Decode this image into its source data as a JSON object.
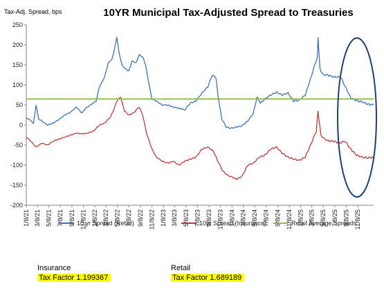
{
  "chart_data": {
    "type": "line",
    "title": "10YR Municipal Tax-Adjusted Spread to Treasuries",
    "ylabel": "Tax-Adj. Spread, bps",
    "xlabel": "",
    "ylim": [
      -200,
      250
    ],
    "yticks": [
      "250",
      "200",
      "150",
      "100",
      "50",
      "0",
      "-50",
      "-100",
      "-150",
      "-200"
    ],
    "xlim": [
      "2021-01-08",
      "2026-01-31"
    ],
    "xticks": [
      "1/8/21",
      "3/8/21",
      "5/8/21",
      "7/8/21",
      "9/8/21",
      "11/8/21",
      "1/8/22",
      "3/8/22",
      "5/8/22",
      "7/8/22",
      "9/8/22",
      "11/8/22",
      "1/8/23",
      "3/8/23",
      "5/8/23",
      "7/8/23",
      "9/8/23",
      "11/8/23",
      "1/8/24",
      "3/8/24",
      "5/8/24",
      "7/8/24",
      "9/8/24",
      "11/8/24",
      "1/8/25",
      "3/8/25",
      "5/8/25",
      "7/8/25",
      "9/8/25",
      "11/8/25"
    ],
    "grid": false,
    "legend_position": "bottom",
    "series": [
      {
        "name": "10 yr Spread (Retail)",
        "color": "#3f72b5",
        "x": [
          "2021-01-08",
          "2021-02-01",
          "2021-02-15",
          "2021-03-01",
          "2021-03-15",
          "2021-04-01",
          "2021-05-01",
          "2021-06-01",
          "2021-07-01",
          "2021-08-01",
          "2021-09-01",
          "2021-10-01",
          "2021-11-01",
          "2021-11-20",
          "2021-12-15",
          "2022-01-15",
          "2022-02-01",
          "2022-03-01",
          "2022-03-20",
          "2022-04-10",
          "2022-04-25",
          "2022-05-05",
          "2022-05-15",
          "2022-06-01",
          "2022-06-20",
          "2022-07-08",
          "2022-07-25",
          "2022-08-15",
          "2022-09-01",
          "2022-09-20",
          "2022-10-05",
          "2022-10-20",
          "2022-11-08",
          "2022-12-01",
          "2023-01-01",
          "2023-02-01",
          "2023-03-01",
          "2023-04-01",
          "2023-05-01",
          "2023-06-01",
          "2023-07-01",
          "2023-08-01",
          "2023-09-01",
          "2023-09-25",
          "2023-10-15",
          "2023-10-25",
          "2023-11-15",
          "2023-12-08",
          "2024-01-01",
          "2024-02-01",
          "2024-03-01",
          "2024-04-01",
          "2024-05-01",
          "2024-05-20",
          "2024-06-08",
          "2024-07-01",
          "2024-08-01",
          "2024-09-01",
          "2024-10-01",
          "2024-11-01",
          "2024-12-01",
          "2025-01-01",
          "2025-02-01",
          "2025-03-01",
          "2025-03-20",
          "2025-04-07",
          "2025-04-10",
          "2025-04-20",
          "2025-05-08",
          "2025-06-01",
          "2025-07-01",
          "2025-07-20",
          "2025-08-08",
          "2025-09-08",
          "2025-10-01",
          "2025-11-08",
          "2025-12-01",
          "2026-01-01",
          "2026-01-31"
        ],
        "y": [
          18,
          12,
          3,
          50,
          15,
          10,
          0,
          5,
          14,
          25,
          32,
          45,
          30,
          42,
          50,
          60,
          95,
          120,
          155,
          165,
          195,
          220,
          185,
          150,
          140,
          135,
          160,
          155,
          175,
          170,
          150,
          110,
          65,
          60,
          50,
          50,
          45,
          42,
          38,
          55,
          60,
          80,
          95,
          125,
          118,
          75,
          15,
          -5,
          -8,
          -5,
          -2,
          10,
          30,
          70,
          55,
          65,
          75,
          82,
          75,
          80,
          60,
          62,
          75,
          115,
          145,
          170,
          220,
          140,
          125,
          125,
          120,
          120,
          120,
          90,
          68,
          60,
          58,
          52,
          50
        ]
      },
      {
        "name": "10yr Spread (Insurance)",
        "color": "#c0393b",
        "x": [
          "2021-01-08",
          "2021-02-01",
          "2021-03-01",
          "2021-04-01",
          "2021-05-01",
          "2021-06-01",
          "2021-07-01",
          "2021-08-01",
          "2021-09-01",
          "2021-10-01",
          "2021-11-01",
          "2021-12-01",
          "2022-01-01",
          "2022-02-01",
          "2022-03-01",
          "2022-04-01",
          "2022-04-20",
          "2022-05-05",
          "2022-05-25",
          "2022-06-15",
          "2022-07-08",
          "2022-08-01",
          "2022-09-01",
          "2022-09-20",
          "2022-10-10",
          "2022-11-08",
          "2022-12-01",
          "2023-01-01",
          "2023-02-01",
          "2023-03-01",
          "2023-04-01",
          "2023-05-01",
          "2023-06-01",
          "2023-07-01",
          "2023-08-01",
          "2023-09-01",
          "2023-10-01",
          "2023-10-25",
          "2023-11-20",
          "2023-12-15",
          "2024-01-10",
          "2024-02-01",
          "2024-03-01",
          "2024-04-01",
          "2024-05-01",
          "2024-06-01",
          "2024-07-01",
          "2024-08-01",
          "2024-09-01",
          "2024-10-01",
          "2024-11-01",
          "2024-12-01",
          "2025-01-01",
          "2025-02-01",
          "2025-03-01",
          "2025-04-01",
          "2025-04-10",
          "2025-04-25",
          "2025-05-15",
          "2025-06-08",
          "2025-07-01",
          "2025-08-01",
          "2025-09-01",
          "2025-10-01",
          "2025-11-01",
          "2025-12-01",
          "2026-01-01",
          "2026-01-31"
        ],
        "y": [
          -30,
          -40,
          -55,
          -45,
          -50,
          -40,
          -35,
          -30,
          -25,
          -20,
          -22,
          -20,
          -15,
          0,
          5,
          20,
          40,
          60,
          70,
          35,
          25,
          30,
          45,
          25,
          -20,
          -60,
          -80,
          -90,
          -95,
          -90,
          -100,
          -90,
          -85,
          -80,
          -60,
          -55,
          -65,
          -90,
          -115,
          -125,
          -130,
          -135,
          -128,
          -100,
          -95,
          -80,
          -75,
          -60,
          -55,
          -70,
          -80,
          -85,
          -88,
          -80,
          -50,
          -15,
          35,
          -25,
          -35,
          -40,
          -40,
          -45,
          -40,
          -60,
          -75,
          -80,
          -82,
          -80
        ]
      },
      {
        "name": "Retail Average Spreads",
        "color": "#8fbf3c",
        "x": [
          "2021-01-08",
          "2026-01-31"
        ],
        "y": [
          65,
          65
        ]
      }
    ],
    "annotations": [
      "ellipse-highlight-recent-period"
    ]
  },
  "factors": {
    "insurance": {
      "title": "Insurance",
      "value": "Tax Factor  1.199367"
    },
    "retail": {
      "title": "Retail",
      "value": "Tax Factor  1.689189"
    }
  }
}
